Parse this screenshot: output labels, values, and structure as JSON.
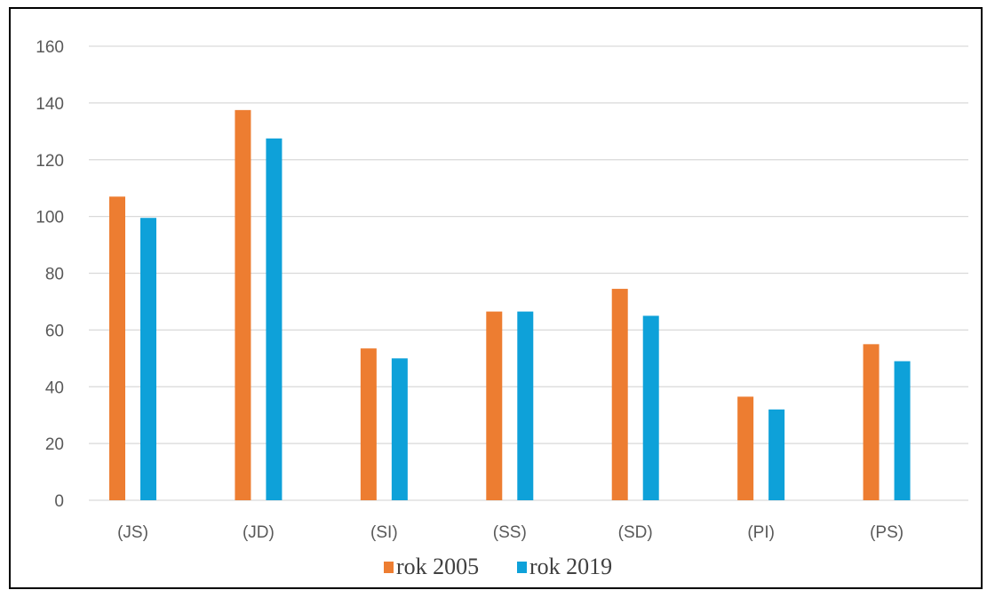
{
  "chart_data": {
    "type": "bar",
    "categories": [
      "(JS)",
      "(JD)",
      "(SI)",
      "(SS)",
      "(SD)",
      "(PI)",
      "(PS)"
    ],
    "series": [
      {
        "name": "rok 2005",
        "color": "#ED7D31",
        "values": [
          107,
          137.5,
          53.5,
          66.5,
          74.5,
          36.5,
          55
        ]
      },
      {
        "name": "rok 2019",
        "color": "#0EA1D9",
        "values": [
          99.5,
          127.5,
          50,
          66.5,
          65,
          32,
          49
        ]
      }
    ],
    "ylim": [
      0,
      160
    ],
    "yticks": [
      0,
      20,
      40,
      60,
      80,
      100,
      120,
      140,
      160
    ],
    "grid": true,
    "legend_position": "bottom"
  }
}
